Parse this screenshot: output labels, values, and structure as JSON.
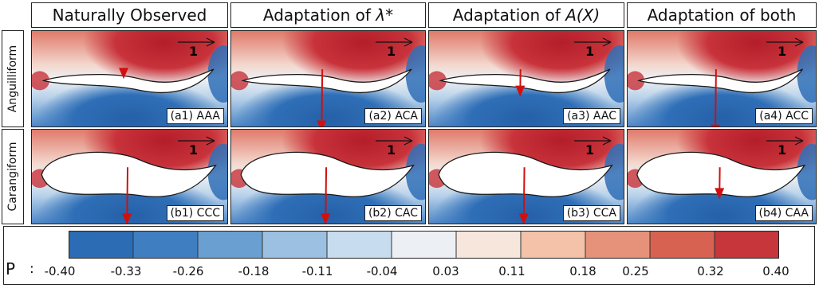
{
  "columns": [
    {
      "text": "Naturally Observed",
      "math": ""
    },
    {
      "text": "Adaptation of ",
      "math": "λ*"
    },
    {
      "text": "Adaptation of ",
      "math": "A(X)"
    },
    {
      "text": "Adaptation of both",
      "math": ""
    }
  ],
  "rows": [
    "Anguilliform",
    "Carangiform"
  ],
  "scale_label": "1",
  "panels": [
    {
      "label": "(a1) AAA",
      "shape": "thin",
      "arrow": 0.1
    },
    {
      "label": "(a2) ACA",
      "shape": "thin",
      "arrow": 0.75
    },
    {
      "label": "(a3) AAC",
      "shape": "thin",
      "arrow": 0.32
    },
    {
      "label": "(a4) ACC",
      "shape": "thin",
      "arrow": 0.8
    },
    {
      "label": "(b1) CCC",
      "shape": "thick",
      "arrow": 0.7
    },
    {
      "label": "(b2) CAC",
      "shape": "thick",
      "arrow": 0.7
    },
    {
      "label": "(b3) CCA",
      "shape": "thick",
      "arrow": 0.7
    },
    {
      "label": "(b4) CAA",
      "shape": "thick",
      "arrow": 0.38
    }
  ],
  "colorbar": {
    "title": "P",
    "separator": ":",
    "ticks": [
      "-0.40",
      "-0.33",
      "-0.26",
      "-0.18",
      "-0.11",
      "-0.04",
      "0.03",
      "0.11",
      "0.18",
      "0.25",
      "0.32",
      "0.40"
    ],
    "colors": [
      "#2b6cb4",
      "#3f7fc1",
      "#6a9fd1",
      "#9cc0e2",
      "#c7dcee",
      "#ecf0f4",
      "#f7e6dc",
      "#f3c2a8",
      "#e6927a",
      "#d76252",
      "#c6363a",
      "#b41e2a"
    ],
    "arrow_color": "#d01010"
  }
}
